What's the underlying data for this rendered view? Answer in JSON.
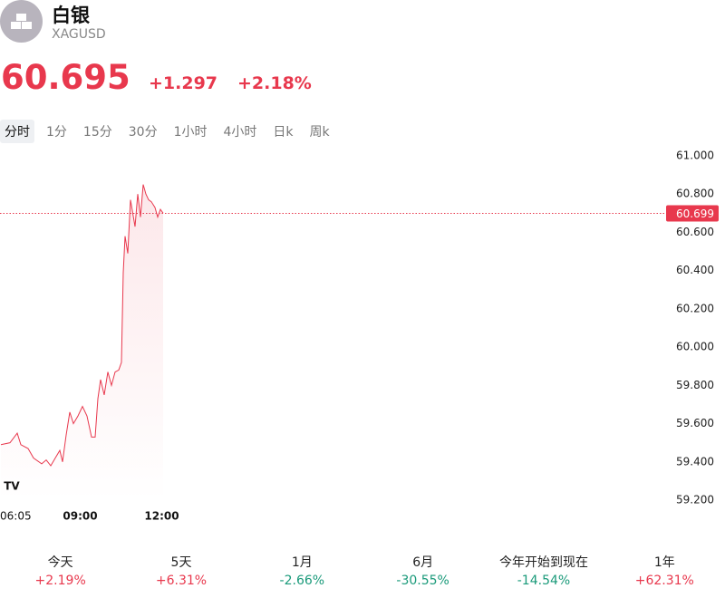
{
  "header": {
    "name": "白银",
    "symbol": "XAGUSD",
    "price": "60.695",
    "change": "+1.297",
    "change_pct": "+2.18%"
  },
  "tabs": [
    "分时",
    "1分",
    "15分",
    "30分",
    "1小时",
    "4小时",
    "日k",
    "周k"
  ],
  "chart_data": {
    "type": "line",
    "x": [
      365,
      385,
      401,
      409,
      425,
      437,
      455,
      465,
      475,
      485,
      495,
      501,
      509,
      517,
      525,
      535,
      545,
      555,
      565,
      573,
      579,
      585,
      593,
      601,
      609,
      617,
      625,
      631,
      635,
      639,
      645,
      651,
      661,
      667,
      673,
      679,
      685,
      691,
      697,
      705,
      711,
      717,
      723
    ],
    "series": [
      {
        "name": "XAGUSD",
        "color": "#e8384d",
        "values": [
          59.49,
          59.5,
          59.55,
          59.49,
          59.47,
          59.42,
          59.39,
          59.41,
          59.38,
          59.42,
          59.46,
          59.4,
          59.54,
          59.66,
          59.6,
          59.64,
          59.69,
          59.64,
          59.53,
          59.53,
          59.73,
          59.83,
          59.75,
          59.87,
          59.8,
          59.87,
          59.88,
          59.92,
          60.39,
          60.58,
          60.49,
          60.77,
          60.63,
          60.8,
          60.68,
          60.85,
          60.8,
          60.77,
          60.76,
          60.73,
          60.68,
          60.72,
          60.7
        ]
      }
    ],
    "xlim": [
      365,
      1833
    ],
    "xticks": [
      {
        "value": 365,
        "label": "06:05"
      },
      {
        "value": 540,
        "label": "09:00"
      },
      {
        "value": 720,
        "label": "12:00"
      }
    ],
    "ylim": [
      59.2,
      61.0
    ],
    "yticks": [
      {
        "value": 59.2,
        "label": "59.200"
      },
      {
        "value": 59.4,
        "label": "59.400"
      },
      {
        "value": 59.6,
        "label": "59.600"
      },
      {
        "value": 59.8,
        "label": "59.800"
      },
      {
        "value": 60.0,
        "label": "60.000"
      },
      {
        "value": 60.2,
        "label": "60.200"
      },
      {
        "value": 60.4,
        "label": "60.400"
      },
      {
        "value": 60.6,
        "label": "60.600"
      },
      {
        "value": 60.8,
        "label": "60.800"
      },
      {
        "value": 61.0,
        "label": "61.000"
      }
    ],
    "price_line": {
      "value": 60.699,
      "label": "60.699"
    },
    "grid": false
  },
  "performance": [
    {
      "label": "今天",
      "change": "+2.19%",
      "color": "#e8384d"
    },
    {
      "label": "5天",
      "change": "+6.31%",
      "color": "#e8384d"
    },
    {
      "label": "1月",
      "change": "-2.66%",
      "color": "#1a9a7a"
    },
    {
      "label": "6月",
      "change": "-30.55%",
      "color": "#1a9a7a"
    },
    {
      "label": "今年开始到现在",
      "change": "-14.54%",
      "color": "#1a9a7a"
    },
    {
      "label": "1年",
      "change": "+62.31%",
      "color": "#e8384d"
    }
  ]
}
